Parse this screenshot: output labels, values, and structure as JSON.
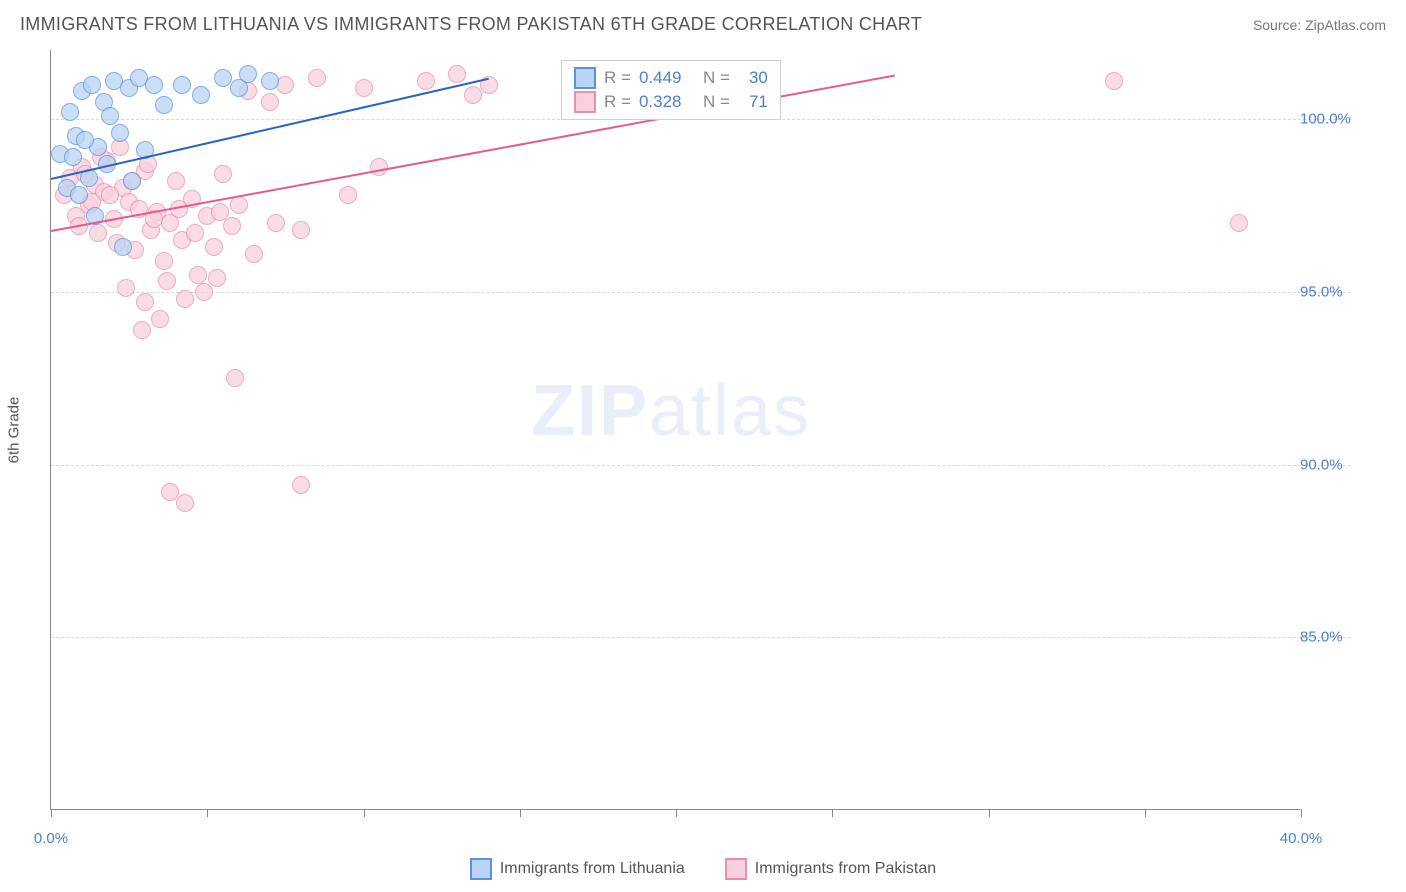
{
  "header": {
    "title": "IMMIGRANTS FROM LITHUANIA VS IMMIGRANTS FROM PAKISTAN 6TH GRADE CORRELATION CHART",
    "source": "Source: ZipAtlas.com"
  },
  "chart": {
    "type": "scatter",
    "ylabel": "6th Grade",
    "xlim": [
      0,
      40
    ],
    "ylim": [
      80,
      102
    ],
    "xtick_positions": [
      0,
      5,
      10,
      15,
      20,
      25,
      30,
      35,
      40
    ],
    "xtick_labels": {
      "0": "0.0%",
      "40": "40.0%"
    },
    "ytick_positions": [
      85,
      90,
      95,
      100
    ],
    "ytick_labels": {
      "85": "85.0%",
      "90": "90.0%",
      "95": "95.0%",
      "100": "100.0%"
    },
    "grid_color": "#d8d8d8",
    "axis_color": "#888888",
    "background_color": "#ffffff",
    "marker_radius": 9,
    "watermark": {
      "text_bold": "ZIP",
      "text_light": "atlas",
      "color": "#e9eef8"
    }
  },
  "series": {
    "lithuania": {
      "label": "Immigrants from Lithuania",
      "fill": "#b9d4f4",
      "stroke": "#5a93e0",
      "line_color": "#2a63c8",
      "R": "0.449",
      "N": "30",
      "trend": {
        "x1": 0,
        "y1": 98.3,
        "x2": 14,
        "y2": 101.2
      },
      "points": [
        [
          0.3,
          99.0
        ],
        [
          0.6,
          100.2
        ],
        [
          0.5,
          98.0
        ],
        [
          0.8,
          99.5
        ],
        [
          1.0,
          100.8
        ],
        [
          0.9,
          97.8
        ],
        [
          1.3,
          101.0
        ],
        [
          1.5,
          99.2
        ],
        [
          1.2,
          98.3
        ],
        [
          1.7,
          100.5
        ],
        [
          2.0,
          101.1
        ],
        [
          1.8,
          98.7
        ],
        [
          2.2,
          99.6
        ],
        [
          2.5,
          100.9
        ],
        [
          2.8,
          101.2
        ],
        [
          3.0,
          99.1
        ],
        [
          2.3,
          96.3
        ],
        [
          3.3,
          101.0
        ],
        [
          3.6,
          100.4
        ],
        [
          1.4,
          97.2
        ],
        [
          4.2,
          101.0
        ],
        [
          4.8,
          100.7
        ],
        [
          5.5,
          101.2
        ],
        [
          6.0,
          100.9
        ],
        [
          6.3,
          101.3
        ],
        [
          7.0,
          101.1
        ],
        [
          0.7,
          98.9
        ],
        [
          1.1,
          99.4
        ],
        [
          1.9,
          100.1
        ],
        [
          2.6,
          98.2
        ]
      ]
    },
    "pakistan": {
      "label": "Immigrants from Pakistan",
      "fill": "#f9d1dd",
      "stroke": "#e88fb0",
      "line_color": "#e85a8f",
      "R": "0.328",
      "N": "71",
      "trend": {
        "x1": 0,
        "y1": 96.8,
        "x2": 27,
        "y2": 101.3
      },
      "points": [
        [
          0.4,
          97.8
        ],
        [
          0.6,
          98.3
        ],
        [
          0.8,
          97.2
        ],
        [
          1.0,
          98.6
        ],
        [
          0.9,
          96.9
        ],
        [
          1.2,
          97.5
        ],
        [
          1.4,
          98.1
        ],
        [
          1.5,
          96.7
        ],
        [
          1.7,
          97.9
        ],
        [
          1.8,
          98.8
        ],
        [
          2.0,
          97.1
        ],
        [
          2.1,
          96.4
        ],
        [
          2.3,
          98.0
        ],
        [
          2.5,
          97.6
        ],
        [
          2.7,
          96.2
        ],
        [
          2.8,
          97.4
        ],
        [
          3.0,
          98.5
        ],
        [
          3.2,
          96.8
        ],
        [
          3.4,
          97.3
        ],
        [
          3.6,
          95.9
        ],
        [
          3.8,
          97.0
        ],
        [
          4.0,
          98.2
        ],
        [
          4.2,
          96.5
        ],
        [
          4.5,
          97.7
        ],
        [
          4.7,
          95.5
        ],
        [
          5.0,
          97.2
        ],
        [
          5.2,
          96.3
        ],
        [
          5.5,
          98.4
        ],
        [
          5.8,
          96.9
        ],
        [
          6.0,
          97.5
        ],
        [
          6.3,
          100.8
        ],
        [
          6.5,
          96.1
        ],
        [
          7.0,
          100.5
        ],
        [
          7.2,
          97.0
        ],
        [
          7.5,
          101.0
        ],
        [
          8.0,
          96.8
        ],
        [
          8.5,
          101.2
        ],
        [
          1.6,
          98.9
        ],
        [
          2.2,
          99.2
        ],
        [
          3.1,
          98.7
        ],
        [
          9.5,
          97.8
        ],
        [
          10.0,
          100.9
        ],
        [
          10.5,
          98.6
        ],
        [
          12.0,
          101.1
        ],
        [
          13.0,
          101.3
        ],
        [
          13.5,
          100.7
        ],
        [
          14.0,
          101.0
        ],
        [
          18.0,
          101.2
        ],
        [
          19.0,
          101.1
        ],
        [
          34.0,
          101.1
        ],
        [
          2.4,
          95.1
        ],
        [
          3.0,
          94.7
        ],
        [
          3.7,
          95.3
        ],
        [
          4.3,
          94.8
        ],
        [
          4.9,
          95.0
        ],
        [
          2.9,
          93.9
        ],
        [
          3.5,
          94.2
        ],
        [
          5.3,
          95.4
        ],
        [
          3.8,
          89.2
        ],
        [
          8.0,
          89.4
        ],
        [
          4.3,
          88.9
        ],
        [
          5.9,
          92.5
        ],
        [
          1.1,
          98.4
        ],
        [
          1.3,
          97.6
        ],
        [
          1.9,
          97.8
        ],
        [
          2.6,
          98.2
        ],
        [
          3.3,
          97.1
        ],
        [
          4.1,
          97.4
        ],
        [
          4.6,
          96.7
        ],
        [
          5.4,
          97.3
        ],
        [
          38.0,
          97.0
        ]
      ]
    }
  },
  "stat_box": {
    "rows": [
      {
        "swatch": "lithuania",
        "R_label": "R =",
        "N_label": "N ="
      },
      {
        "swatch": "pakistan",
        "R_label": "R =",
        "N_label": "N ="
      }
    ]
  }
}
